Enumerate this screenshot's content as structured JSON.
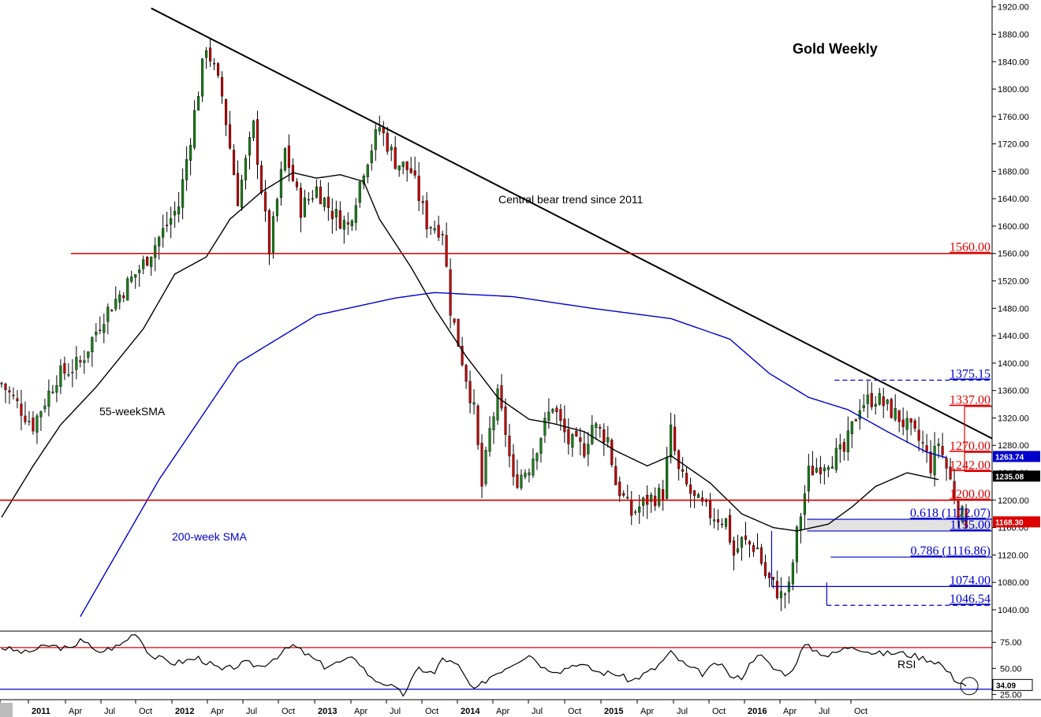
{
  "chart_data": {
    "type": "candlestick",
    "title": "Gold Weekly",
    "colors": {
      "up": "#1a7f1a",
      "down": "#c00000",
      "sma55": "#000000",
      "sma200": "#0000cc",
      "resistance": "#dd0000",
      "support": "#0000cc",
      "trend": "#000000"
    },
    "price_axis": {
      "ylim": [
        1010,
        1930
      ],
      "ticks": [
        "1040.00",
        "1080.00",
        "1120.00",
        "1160.00",
        "1200.00",
        "1240.00",
        "1280.00",
        "1320.00",
        "1360.00",
        "1400.00",
        "1440.00",
        "1480.00",
        "1520.00",
        "1560.00",
        "1600.00",
        "1640.00",
        "1680.00",
        "1720.00",
        "1760.00",
        "1800.00",
        "1840.00",
        "1880.00",
        "1920.00"
      ]
    },
    "rsi_axis": {
      "ylim": [
        20,
        85
      ],
      "ticks": [
        "25.00",
        "50.00",
        "75.00"
      ]
    },
    "x_axis": {
      "labels": [
        "10",
        "2011",
        "Apr",
        "Jul",
        "Oct",
        "2012",
        "Apr",
        "Jul",
        "Oct",
        "2013",
        "Apr",
        "Jul",
        "Oct",
        "2014",
        "Apr",
        "Jul",
        "Oct",
        "2015",
        "Apr",
        "Jul",
        "Oct",
        "2016",
        "Apr",
        "Jul",
        "Oct"
      ]
    },
    "price_path": [
      [
        0,
        1370
      ],
      [
        8,
        1310
      ],
      [
        14,
        1380
      ],
      [
        20,
        1400
      ],
      [
        26,
        1470
      ],
      [
        36,
        1545
      ],
      [
        45,
        1630
      ],
      [
        52,
        1865
      ],
      [
        56,
        1790
      ],
      [
        60,
        1640
      ],
      [
        64,
        1745
      ],
      [
        68,
        1565
      ],
      [
        72,
        1710
      ],
      [
        76,
        1625
      ],
      [
        80,
        1655
      ],
      [
        84,
        1620
      ],
      [
        88,
        1600
      ],
      [
        92,
        1685
      ],
      [
        96,
        1745
      ],
      [
        100,
        1695
      ],
      [
        104,
        1680
      ],
      [
        108,
        1605
      ],
      [
        112,
        1595
      ],
      [
        114,
        1480
      ],
      [
        116,
        1430
      ],
      [
        118,
        1380
      ],
      [
        120,
        1330
      ],
      [
        122,
        1220
      ],
      [
        124,
        1300
      ],
      [
        126,
        1350
      ],
      [
        128,
        1300
      ],
      [
        130,
        1225
      ],
      [
        134,
        1250
      ],
      [
        136,
        1280
      ],
      [
        140,
        1340
      ],
      [
        142,
        1310
      ],
      [
        144,
        1285
      ],
      [
        148,
        1275
      ],
      [
        150,
        1310
      ],
      [
        154,
        1290
      ],
      [
        156,
        1225
      ],
      [
        160,
        1180
      ],
      [
        164,
        1200
      ],
      [
        168,
        1210
      ],
      [
        170,
        1300
      ],
      [
        172,
        1240
      ],
      [
        176,
        1200
      ],
      [
        180,
        1180
      ],
      [
        184,
        1170
      ],
      [
        186,
        1120
      ],
      [
        188,
        1140
      ],
      [
        192,
        1130
      ],
      [
        194,
        1090
      ],
      [
        198,
        1060
      ],
      [
        200,
        1070
      ],
      [
        202,
        1150
      ],
      [
        205,
        1240
      ],
      [
        210,
        1260
      ],
      [
        214,
        1270
      ],
      [
        218,
        1340
      ],
      [
        222,
        1350
      ],
      [
        228,
        1320
      ],
      [
        234,
        1280
      ],
      [
        236,
        1250
      ],
      [
        238,
        1285
      ],
      [
        241,
        1228
      ],
      [
        243,
        1185
      ],
      [
        245,
        1170
      ]
    ],
    "sma55": [
      [
        0,
        1175
      ],
      [
        8,
        1250
      ],
      [
        15,
        1310
      ],
      [
        24,
        1365
      ],
      [
        36,
        1450
      ],
      [
        44,
        1530
      ],
      [
        52,
        1555
      ],
      [
        58,
        1610
      ],
      [
        66,
        1650
      ],
      [
        74,
        1678
      ],
      [
        80,
        1670
      ],
      [
        86,
        1675
      ],
      [
        92,
        1665
      ],
      [
        96,
        1610
      ],
      [
        104,
        1540
      ],
      [
        110,
        1480
      ],
      [
        118,
        1410
      ],
      [
        126,
        1350
      ],
      [
        134,
        1318
      ],
      [
        140,
        1312
      ],
      [
        148,
        1300
      ],
      [
        156,
        1272
      ],
      [
        164,
        1250
      ],
      [
        170,
        1265
      ],
      [
        180,
        1225
      ],
      [
        188,
        1180
      ],
      [
        196,
        1160
      ],
      [
        202,
        1155
      ],
      [
        210,
        1165
      ],
      [
        216,
        1190
      ],
      [
        222,
        1220
      ],
      [
        230,
        1240
      ],
      [
        238,
        1230
      ]
    ],
    "sma200": [
      [
        20,
        1030
      ],
      [
        40,
        1230
      ],
      [
        60,
        1400
      ],
      [
        80,
        1470
      ],
      [
        100,
        1495
      ],
      [
        110,
        1503
      ],
      [
        130,
        1497
      ],
      [
        150,
        1480
      ],
      [
        170,
        1465
      ],
      [
        185,
        1435
      ],
      [
        195,
        1385
      ],
      [
        205,
        1350
      ],
      [
        215,
        1332
      ],
      [
        225,
        1300
      ],
      [
        235,
        1270
      ],
      [
        240,
        1262
      ]
    ],
    "rsi_path": [
      [
        0,
        70
      ],
      [
        6,
        65
      ],
      [
        12,
        72
      ],
      [
        18,
        68
      ],
      [
        20,
        80
      ],
      [
        24,
        65
      ],
      [
        30,
        72
      ],
      [
        34,
        85
      ],
      [
        38,
        62
      ],
      [
        44,
        55
      ],
      [
        50,
        60
      ],
      [
        56,
        48
      ],
      [
        62,
        55
      ],
      [
        66,
        52
      ],
      [
        74,
        72
      ],
      [
        82,
        52
      ],
      [
        90,
        60
      ],
      [
        94,
        40
      ],
      [
        98,
        35
      ],
      [
        102,
        25
      ],
      [
        106,
        50
      ],
      [
        110,
        45
      ],
      [
        112,
        60
      ],
      [
        116,
        52
      ],
      [
        120,
        28
      ],
      [
        124,
        42
      ],
      [
        130,
        55
      ],
      [
        134,
        64
      ],
      [
        138,
        50
      ],
      [
        142,
        48
      ],
      [
        146,
        55
      ],
      [
        152,
        46
      ],
      [
        156,
        45
      ],
      [
        160,
        38
      ],
      [
        166,
        50
      ],
      [
        170,
        65
      ],
      [
        174,
        52
      ],
      [
        178,
        45
      ],
      [
        182,
        55
      ],
      [
        186,
        40
      ],
      [
        188,
        42
      ],
      [
        192,
        65
      ],
      [
        196,
        50
      ],
      [
        200,
        44
      ],
      [
        204,
        72
      ],
      [
        210,
        62
      ],
      [
        216,
        72
      ],
      [
        222,
        64
      ],
      [
        228,
        65
      ],
      [
        232,
        62
      ],
      [
        238,
        56
      ],
      [
        242,
        40
      ],
      [
        245,
        34
      ]
    ],
    "trendline": {
      "label": "Central bear trend since 2011",
      "from": [
        38,
        1918
      ],
      "to": [
        252,
        1290
      ]
    },
    "levels": [
      {
        "value": 1560.0,
        "label": "1560.00",
        "kind": "resistance",
        "x_from": 18
      },
      {
        "value": 1375.15,
        "label": "1375.15",
        "kind": "support",
        "style": "dashed",
        "x_from": 212
      },
      {
        "value": 1337.0,
        "label": "1337.00",
        "kind": "resistance",
        "x_from": 245
      },
      {
        "value": 1270.0,
        "label": "1270.00",
        "kind": "resistance",
        "x_from": 245
      },
      {
        "value": 1242.0,
        "label": "1242.00",
        "kind": "resistance",
        "x_from": 245
      },
      {
        "value": 1200.0,
        "label": "1200.00",
        "kind": "resistance",
        "x_from": 0
      },
      {
        "value": 1172.07,
        "label": "0.618 (1172.07)",
        "kind": "support",
        "x_from": 205
      },
      {
        "value": 1155.0,
        "label": "1155.00",
        "kind": "support",
        "x_from": 205
      },
      {
        "value": 1116.86,
        "label": "0.786 (1116.86)",
        "kind": "support",
        "x_from": 211
      },
      {
        "value": 1074.0,
        "label": "1074.00",
        "kind": "support",
        "x_from": 196
      },
      {
        "value": 1046.54,
        "label": "1046.54",
        "kind": "support",
        "style": "dashed",
        "x_from": 210
      }
    ],
    "zone": {
      "from": 1155.0,
      "to": 1172.07
    },
    "current_values": [
      {
        "value": 1263.74,
        "label": "1263.74",
        "color": "#0000cc"
      },
      {
        "value": 1235.08,
        "label": "1235.08",
        "color": "#000000"
      },
      {
        "value": 1168.3,
        "label": "1168.30",
        "color": "#dd0000"
      }
    ],
    "rsi_value": {
      "value": 34.09,
      "label": "34.09"
    },
    "rsi_levels": [
      70,
      30
    ],
    "annotations": {
      "sma55_label": "55-weekSMA",
      "sma200_label": "200-week SMA",
      "rsi_label": "RSI"
    }
  }
}
